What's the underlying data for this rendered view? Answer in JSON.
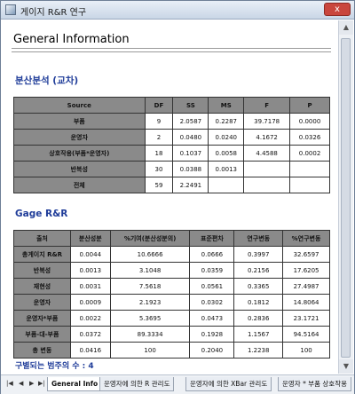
{
  "window": {
    "title": "게이지 R&R 연구",
    "close": "x"
  },
  "page": {
    "heading": "General Information",
    "anova_title": "분산분석 (교차)",
    "gage_title": "Gage R&R",
    "distinct_categories": "구별되는 범주의 수 : 4"
  },
  "anova": {
    "headers": [
      "Source",
      "DF",
      "SS",
      "MS",
      "F",
      "P"
    ],
    "rows": [
      [
        "부품",
        "9",
        "2.0587",
        "0.2287",
        "39.7178",
        "0.0000"
      ],
      [
        "운영자",
        "2",
        "0.0480",
        "0.0240",
        "4.1672",
        "0.0326"
      ],
      [
        "상호작용(부품*운영자)",
        "18",
        "0.1037",
        "0.0058",
        "4.4588",
        "0.0002"
      ],
      [
        "반복성",
        "30",
        "0.0388",
        "0.0013",
        "",
        ""
      ],
      [
        "전체",
        "59",
        "2.2491",
        "",
        "",
        ""
      ]
    ]
  },
  "gage": {
    "headers": [
      "출처",
      "분산성분",
      "%기여(분산성분의)",
      "표준편차",
      "연구변동",
      "%연구변동"
    ],
    "rows": [
      [
        "총게이지 R&R",
        "0.0044",
        "10.6666",
        "0.0666",
        "0.3997",
        "32.6597"
      ],
      [
        "반복성",
        "0.0013",
        "3.1048",
        "0.0359",
        "0.2156",
        "17.6205"
      ],
      [
        "재현성",
        "0.0031",
        "7.5618",
        "0.0561",
        "0.3365",
        "27.4987"
      ],
      [
        "운영자",
        "0.0009",
        "2.1923",
        "0.0302",
        "0.1812",
        "14.8064"
      ],
      [
        "운영자*부품",
        "0.0022",
        "5.3695",
        "0.0473",
        "0.2836",
        "23.1721"
      ],
      [
        "부품-대-부품",
        "0.0372",
        "89.3334",
        "0.1928",
        "1.1567",
        "94.5164"
      ],
      [
        "총 변동",
        "0.0416",
        "100",
        "0.2040",
        "1.2238",
        "100"
      ]
    ]
  },
  "tabs": {
    "nav": [
      "|◀",
      "◀",
      "▶",
      "▶|"
    ],
    "items": [
      "General Info",
      "운영자에 의한 R 관리도",
      "운영자에 의한 XBar 관리도",
      "운영자 * 부품 상호작용"
    ]
  }
}
